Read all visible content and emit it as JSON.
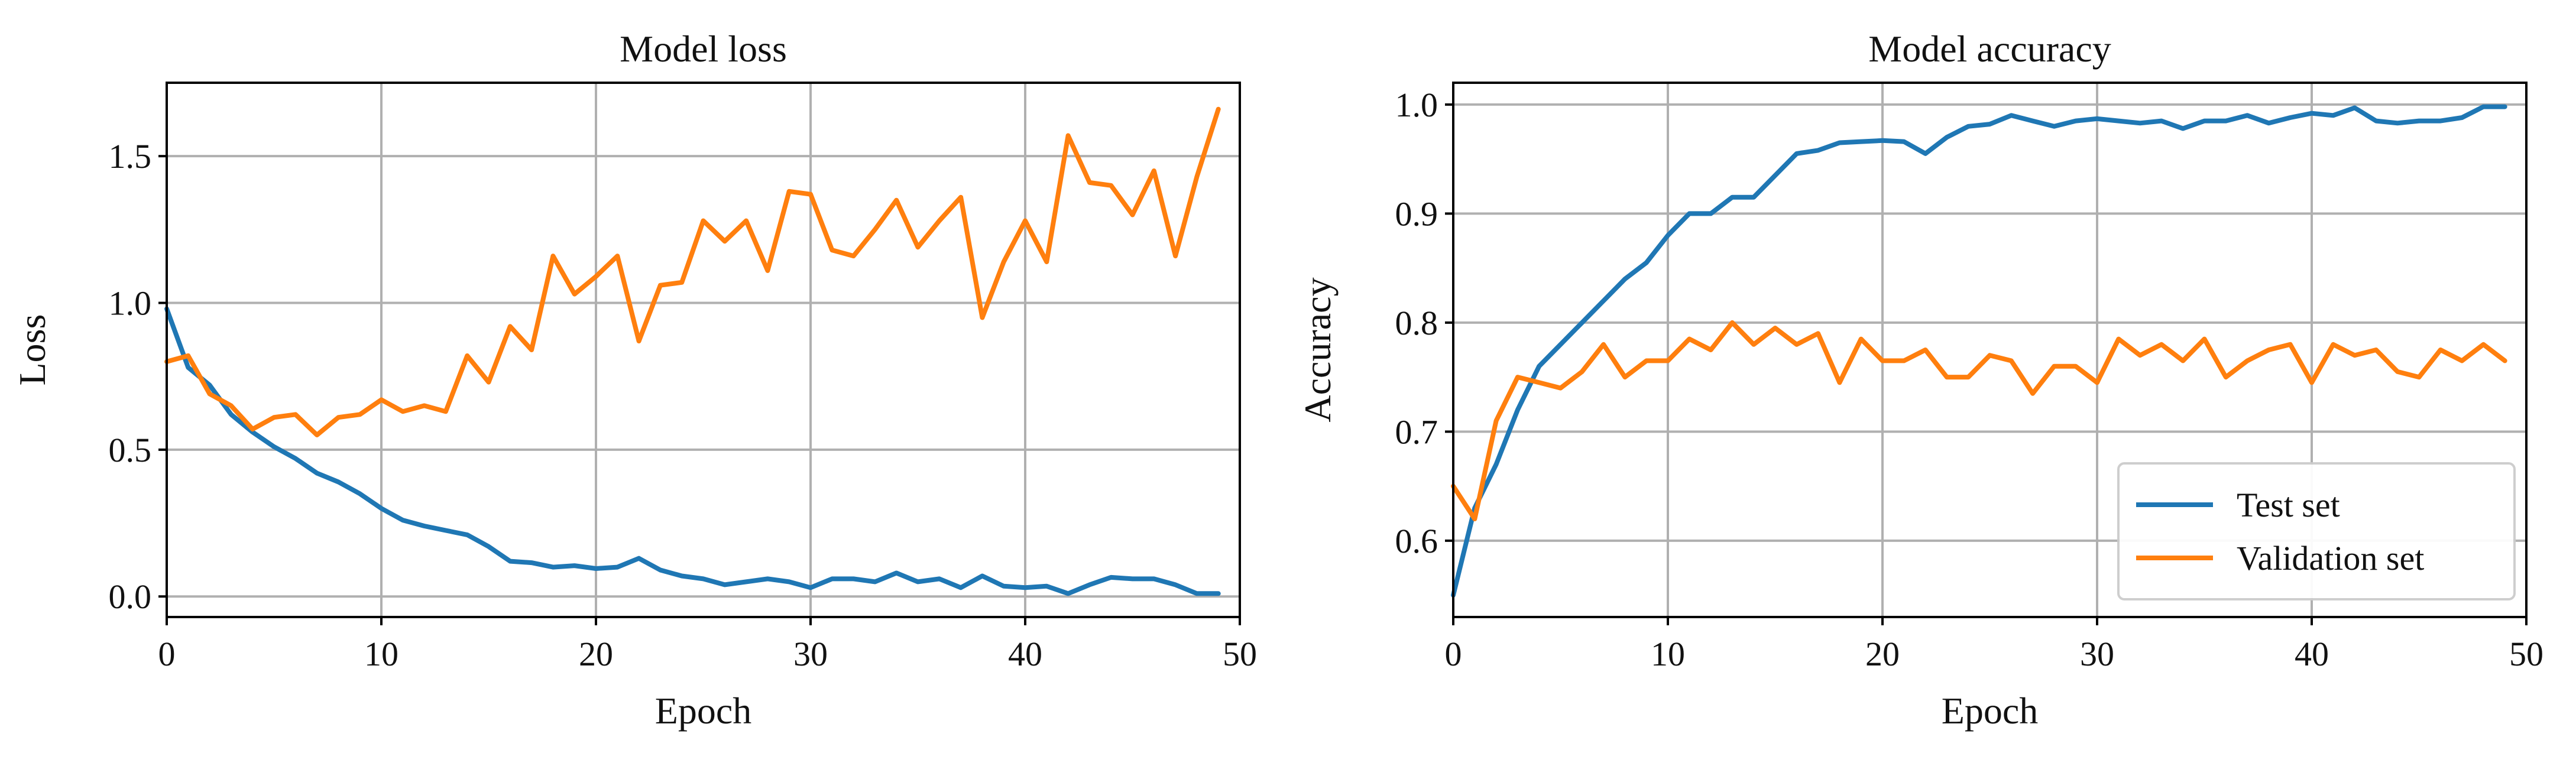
{
  "chart_data": [
    {
      "type": "line",
      "title": "Model loss",
      "xlabel": "Epoch",
      "ylabel": "Loss",
      "xlim": [
        0,
        50
      ],
      "ylim": [
        -0.07,
        1.75
      ],
      "xticks": [
        0,
        10,
        20,
        30,
        40,
        50
      ],
      "yticks": [
        0.0,
        0.5,
        1.0,
        1.5
      ],
      "xtick_labels": [
        "0",
        "10",
        "20",
        "30",
        "40",
        "50"
      ],
      "ytick_labels": [
        "0.0",
        "0.5",
        "1.0",
        "1.5"
      ],
      "grid": true,
      "legend": null,
      "x": [
        0,
        1,
        2,
        3,
        4,
        5,
        6,
        7,
        8,
        9,
        10,
        11,
        12,
        13,
        14,
        15,
        16,
        17,
        18,
        19,
        20,
        21,
        22,
        23,
        24,
        25,
        26,
        27,
        28,
        29,
        30,
        31,
        32,
        33,
        34,
        35,
        36,
        37,
        38,
        39,
        40,
        41,
        42,
        43,
        44,
        45,
        46,
        47,
        48,
        49
      ],
      "series": [
        {
          "color": "#1f77b4",
          "values": [
            0.98,
            0.78,
            0.72,
            0.62,
            0.56,
            0.51,
            0.47,
            0.42,
            0.39,
            0.35,
            0.3,
            0.26,
            0.24,
            0.225,
            0.21,
            0.17,
            0.12,
            0.115,
            0.1,
            0.105,
            0.095,
            0.1,
            0.13,
            0.09,
            0.07,
            0.06,
            0.04,
            0.05,
            0.06,
            0.05,
            0.03,
            0.06,
            0.06,
            0.05,
            0.08,
            0.05,
            0.06,
            0.03,
            0.07,
            0.035,
            0.03,
            0.035,
            0.01,
            0.04,
            0.065,
            0.06,
            0.06,
            0.04,
            0.01,
            0.01
          ]
        },
        {
          "color": "#ff7f0e",
          "values": [
            0.8,
            0.82,
            0.69,
            0.65,
            0.57,
            0.61,
            0.62,
            0.55,
            0.61,
            0.62,
            0.67,
            0.63,
            0.65,
            0.63,
            0.82,
            0.73,
            0.92,
            0.84,
            1.16,
            1.03,
            1.09,
            1.16,
            0.87,
            1.06,
            1.07,
            1.28,
            1.21,
            1.28,
            1.11,
            1.38,
            1.37,
            1.18,
            1.16,
            1.25,
            1.35,
            1.19,
            1.28,
            1.36,
            0.95,
            1.14,
            1.28,
            1.14,
            1.57,
            1.41,
            1.4,
            1.3,
            1.45,
            1.16,
            1.43,
            1.66
          ]
        }
      ]
    },
    {
      "type": "line",
      "title": "Model accuracy",
      "xlabel": "Epoch",
      "ylabel": "Accuracy",
      "xlim": [
        0,
        50
      ],
      "ylim": [
        0.53,
        1.02
      ],
      "xticks": [
        0,
        10,
        20,
        30,
        40,
        50
      ],
      "yticks": [
        0.6,
        0.7,
        0.8,
        0.9,
        1.0
      ],
      "xtick_labels": [
        "0",
        "10",
        "20",
        "30",
        "40",
        "50"
      ],
      "ytick_labels": [
        "0.6",
        "0.7",
        "0.8",
        "0.9",
        "1.0"
      ],
      "grid": true,
      "legend": "lower-right",
      "x": [
        0,
        1,
        2,
        3,
        4,
        5,
        6,
        7,
        8,
        9,
        10,
        11,
        12,
        13,
        14,
        15,
        16,
        17,
        18,
        19,
        20,
        21,
        22,
        23,
        24,
        25,
        26,
        27,
        28,
        29,
        30,
        31,
        32,
        33,
        34,
        35,
        36,
        37,
        38,
        39,
        40,
        41,
        42,
        43,
        44,
        45,
        46,
        47,
        48,
        49
      ],
      "series": [
        {
          "name": "Test set",
          "color": "#1f77b4",
          "values": [
            0.55,
            0.63,
            0.67,
            0.72,
            0.76,
            0.78,
            0.8,
            0.82,
            0.84,
            0.855,
            0.88,
            0.9,
            0.9,
            0.915,
            0.915,
            0.935,
            0.955,
            0.958,
            0.965,
            0.966,
            0.967,
            0.966,
            0.955,
            0.97,
            0.98,
            0.982,
            0.99,
            0.985,
            0.98,
            0.985,
            0.987,
            0.985,
            0.983,
            0.985,
            0.978,
            0.985,
            0.985,
            0.99,
            0.983,
            0.988,
            0.992,
            0.99,
            0.997,
            0.985,
            0.983,
            0.985,
            0.985,
            0.988,
            0.998,
            0.998
          ]
        },
        {
          "name": "Validation set",
          "color": "#ff7f0e",
          "values": [
            0.65,
            0.62,
            0.71,
            0.75,
            0.745,
            0.74,
            0.755,
            0.78,
            0.75,
            0.765,
            0.765,
            0.785,
            0.775,
            0.8,
            0.78,
            0.795,
            0.78,
            0.79,
            0.745,
            0.785,
            0.765,
            0.765,
            0.775,
            0.75,
            0.75,
            0.77,
            0.765,
            0.735,
            0.76,
            0.76,
            0.745,
            0.785,
            0.77,
            0.78,
            0.765,
            0.785,
            0.75,
            0.765,
            0.775,
            0.78,
            0.745,
            0.78,
            0.77,
            0.775,
            0.755,
            0.75,
            0.775,
            0.765,
            0.78,
            0.765
          ]
        }
      ]
    }
  ]
}
